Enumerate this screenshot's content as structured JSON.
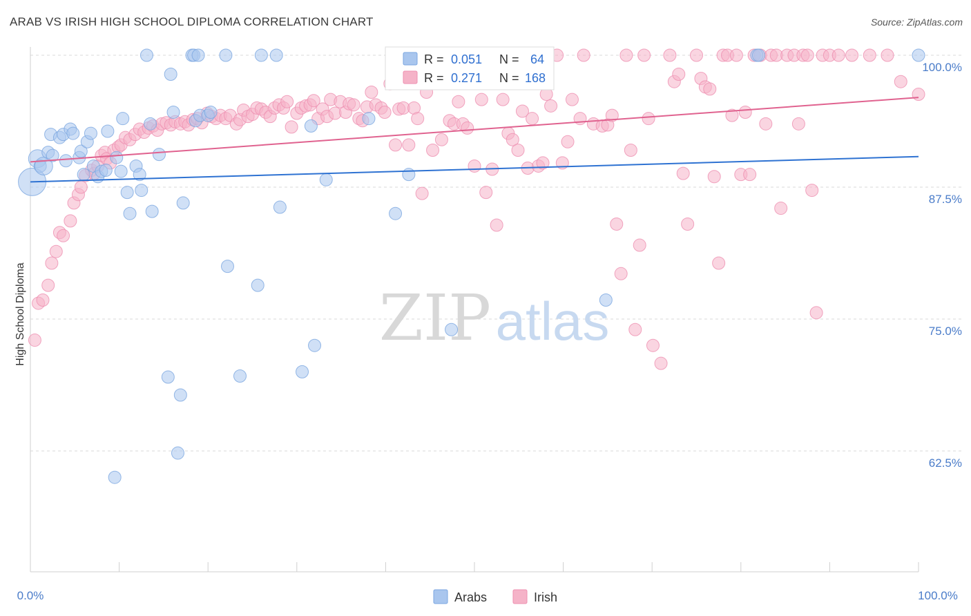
{
  "header": {
    "title": "ARAB VS IRISH HIGH SCHOOL DIPLOMA CORRELATION CHART",
    "source": "Source: ZipAtlas.com"
  },
  "watermark": {
    "zip": "ZIP",
    "atlas": "atlas"
  },
  "colors": {
    "arabs_fill": "#a9c6ee",
    "arabs_stroke": "#7aa6e0",
    "arabs_line": "#2e72d2",
    "irish_fill": "#f5b3c8",
    "irish_stroke": "#ee8fb0",
    "irish_line": "#e0628f",
    "grid": "#d9d9d9",
    "tick_label": "#4a7cc9"
  },
  "chart_data": {
    "type": "scatter",
    "title": "ARAB VS IRISH HIGH SCHOOL DIPLOMA CORRELATION CHART",
    "xlabel": "",
    "ylabel": "High School Diploma",
    "xlim": [
      0,
      100
    ],
    "ylim": [
      55.0,
      101.0
    ],
    "x_tick_labels": [
      "0.0%",
      "100.0%"
    ],
    "y_ticks": [
      {
        "value": 100.0,
        "label": "100.0%"
      },
      {
        "value": 87.5,
        "label": "87.5%"
      },
      {
        "value": 75.0,
        "label": "75.0%"
      },
      {
        "value": 62.5,
        "label": "62.5%"
      }
    ],
    "grid": "horizontal dashed",
    "legend_placement": "top-center",
    "legend": [
      {
        "name": "Arabs",
        "r_label": "R =",
        "r_value": "0.051",
        "n_label": "N =",
        "n_value": "64"
      },
      {
        "name": "Irish",
        "r_label": "R =",
        "r_value": "0.271",
        "n_label": "N =",
        "n_value": "168"
      }
    ],
    "series": [
      {
        "name": "Arabs",
        "trend": {
          "x": [
            0,
            100
          ],
          "y": [
            88.0,
            90.4
          ]
        },
        "points": [
          [
            0.2,
            88.0
          ],
          [
            0.8,
            90.2
          ],
          [
            1.1,
            89.5
          ],
          [
            1.5,
            89.5
          ],
          [
            2.0,
            90.8
          ],
          [
            2.3,
            92.5
          ],
          [
            2.5,
            90.5
          ],
          [
            3.3,
            92.2
          ],
          [
            3.7,
            92.5
          ],
          [
            4.0,
            90.0
          ],
          [
            4.5,
            93.0
          ],
          [
            4.8,
            92.6
          ],
          [
            5.5,
            90.3
          ],
          [
            5.7,
            90.9
          ],
          [
            6.0,
            88.7
          ],
          [
            6.4,
            91.8
          ],
          [
            6.8,
            92.6
          ],
          [
            7.1,
            89.5
          ],
          [
            7.6,
            88.5
          ],
          [
            8.0,
            89.0
          ],
          [
            8.5,
            89.1
          ],
          [
            8.7,
            92.8
          ],
          [
            9.5,
            60.0
          ],
          [
            9.7,
            90.3
          ],
          [
            10.2,
            89.0
          ],
          [
            10.4,
            94.0
          ],
          [
            10.9,
            87.0
          ],
          [
            11.2,
            85.0
          ],
          [
            11.9,
            89.5
          ],
          [
            12.3,
            88.7
          ],
          [
            12.5,
            87.2
          ],
          [
            13.1,
            100.0
          ],
          [
            13.5,
            93.5
          ],
          [
            13.7,
            85.2
          ],
          [
            14.5,
            90.6
          ],
          [
            15.5,
            69.5
          ],
          [
            15.8,
            98.2
          ],
          [
            16.1,
            94.6
          ],
          [
            16.6,
            62.3
          ],
          [
            16.9,
            67.8
          ],
          [
            17.2,
            86.0
          ],
          [
            18.2,
            100.0
          ],
          [
            18.4,
            100.0
          ],
          [
            18.6,
            93.8
          ],
          [
            18.9,
            100.0
          ],
          [
            19.1,
            94.3
          ],
          [
            20.0,
            94.3
          ],
          [
            20.3,
            94.6
          ],
          [
            22.0,
            100.0
          ],
          [
            22.2,
            80.0
          ],
          [
            23.6,
            69.6
          ],
          [
            25.6,
            78.2
          ],
          [
            26.0,
            100.0
          ],
          [
            27.7,
            100.0
          ],
          [
            28.1,
            85.6
          ],
          [
            30.6,
            70.0
          ],
          [
            31.6,
            93.3
          ],
          [
            32.0,
            72.5
          ],
          [
            33.3,
            88.2
          ],
          [
            38.1,
            94.0
          ],
          [
            41.1,
            85.0
          ],
          [
            42.6,
            88.7
          ],
          [
            47.4,
            74.0
          ],
          [
            49.5,
            100.0
          ],
          [
            57.2,
            100.0
          ],
          [
            64.8,
            76.8
          ],
          [
            81.8,
            100.0
          ],
          [
            82.0,
            100.0
          ],
          [
            100.0,
            100.0
          ]
        ]
      },
      {
        "name": "Irish",
        "trend": {
          "x": [
            0,
            100
          ],
          "y": [
            89.9,
            96.0
          ]
        },
        "points": [
          [
            0.5,
            73.0
          ],
          [
            0.9,
            76.5
          ],
          [
            1.4,
            76.8
          ],
          [
            2.0,
            78.2
          ],
          [
            2.4,
            80.3
          ],
          [
            2.9,
            81.4
          ],
          [
            3.3,
            83.2
          ],
          [
            3.7,
            82.9
          ],
          [
            4.5,
            84.3
          ],
          [
            4.9,
            86.0
          ],
          [
            5.4,
            86.8
          ],
          [
            5.7,
            87.5
          ],
          [
            6.2,
            88.6
          ],
          [
            6.9,
            89.1
          ],
          [
            7.2,
            88.8
          ],
          [
            7.6,
            89.5
          ],
          [
            8.0,
            90.5
          ],
          [
            8.4,
            90.8
          ],
          [
            8.6,
            90.2
          ],
          [
            9.0,
            89.8
          ],
          [
            9.4,
            91.0
          ],
          [
            9.9,
            91.3
          ],
          [
            10.2,
            91.5
          ],
          [
            10.7,
            92.2
          ],
          [
            11.2,
            92.0
          ],
          [
            11.8,
            92.5
          ],
          [
            12.3,
            93.0
          ],
          [
            12.8,
            92.7
          ],
          [
            13.3,
            93.1
          ],
          [
            13.8,
            93.3
          ],
          [
            14.3,
            92.9
          ],
          [
            14.8,
            93.5
          ],
          [
            15.3,
            93.6
          ],
          [
            15.8,
            93.4
          ],
          [
            16.3,
            93.7
          ],
          [
            16.9,
            93.5
          ],
          [
            17.4,
            93.7
          ],
          [
            17.8,
            93.4
          ],
          [
            18.3,
            93.9
          ],
          [
            18.8,
            94.0
          ],
          [
            19.3,
            93.6
          ],
          [
            19.9,
            94.5
          ],
          [
            20.4,
            94.2
          ],
          [
            20.9,
            94.0
          ],
          [
            21.4,
            94.3
          ],
          [
            22.0,
            94.0
          ],
          [
            22.5,
            94.3
          ],
          [
            23.2,
            93.5
          ],
          [
            23.6,
            93.9
          ],
          [
            24.0,
            94.8
          ],
          [
            24.5,
            94.2
          ],
          [
            25.0,
            94.4
          ],
          [
            25.5,
            95.0
          ],
          [
            26.0,
            94.9
          ],
          [
            26.5,
            94.6
          ],
          [
            27.0,
            94.2
          ],
          [
            27.5,
            95.0
          ],
          [
            28.0,
            95.3
          ],
          [
            28.5,
            95.0
          ],
          [
            28.9,
            95.6
          ],
          [
            29.4,
            93.2
          ],
          [
            30.0,
            94.5
          ],
          [
            30.5,
            95.0
          ],
          [
            31.0,
            95.2
          ],
          [
            31.5,
            95.3
          ],
          [
            31.9,
            95.7
          ],
          [
            32.4,
            94.0
          ],
          [
            32.9,
            94.9
          ],
          [
            33.4,
            94.2
          ],
          [
            33.8,
            95.8
          ],
          [
            34.3,
            94.5
          ],
          [
            34.9,
            95.6
          ],
          [
            35.5,
            94.6
          ],
          [
            35.9,
            95.4
          ],
          [
            36.4,
            95.3
          ],
          [
            37.0,
            94.0
          ],
          [
            37.4,
            93.8
          ],
          [
            37.9,
            95.1
          ],
          [
            38.4,
            96.5
          ],
          [
            38.9,
            95.3
          ],
          [
            39.5,
            95.0
          ],
          [
            39.9,
            94.6
          ],
          [
            40.5,
            97.3
          ],
          [
            41.1,
            91.5
          ],
          [
            41.5,
            94.9
          ],
          [
            42.0,
            95.0
          ],
          [
            42.6,
            91.5
          ],
          [
            43.2,
            95.0
          ],
          [
            43.6,
            94.0
          ],
          [
            44.1,
            86.9
          ],
          [
            44.6,
            96.5
          ],
          [
            45.3,
            91.0
          ],
          [
            45.8,
            100.0
          ],
          [
            46.3,
            92.0
          ],
          [
            47.2,
            93.8
          ],
          [
            47.7,
            93.5
          ],
          [
            48.2,
            95.6
          ],
          [
            48.7,
            93.5
          ],
          [
            49.2,
            93.1
          ],
          [
            50.0,
            89.5
          ],
          [
            50.8,
            95.8
          ],
          [
            51.3,
            87.0
          ],
          [
            52.0,
            89.2
          ],
          [
            52.5,
            83.9
          ],
          [
            53.2,
            95.8
          ],
          [
            53.8,
            92.6
          ],
          [
            54.3,
            92.0
          ],
          [
            54.9,
            91.0
          ],
          [
            55.4,
            94.7
          ],
          [
            56.0,
            89.3
          ],
          [
            56.5,
            94.0
          ],
          [
            57.2,
            89.5
          ],
          [
            57.7,
            89.8
          ],
          [
            58.1,
            96.3
          ],
          [
            58.6,
            95.2
          ],
          [
            59.3,
            100.0
          ],
          [
            59.9,
            89.8
          ],
          [
            60.5,
            91.8
          ],
          [
            61.0,
            95.8
          ],
          [
            61.9,
            94.0
          ],
          [
            62.3,
            100.0
          ],
          [
            63.4,
            93.5
          ],
          [
            64.4,
            93.3
          ],
          [
            65.0,
            93.4
          ],
          [
            65.5,
            94.3
          ],
          [
            66.0,
            84.0
          ],
          [
            66.5,
            79.3
          ],
          [
            67.1,
            100.0
          ],
          [
            67.6,
            91.0
          ],
          [
            68.1,
            74.0
          ],
          [
            68.6,
            82.0
          ],
          [
            69.1,
            100.0
          ],
          [
            69.6,
            94.0
          ],
          [
            70.1,
            72.5
          ],
          [
            71.0,
            70.8
          ],
          [
            72.0,
            100.0
          ],
          [
            72.5,
            97.5
          ],
          [
            73.0,
            98.2
          ],
          [
            73.5,
            88.8
          ],
          [
            74.0,
            84.0
          ],
          [
            75.0,
            100.0
          ],
          [
            75.5,
            97.8
          ],
          [
            76.0,
            97.0
          ],
          [
            76.5,
            96.8
          ],
          [
            77.0,
            88.5
          ],
          [
            77.5,
            80.3
          ],
          [
            78.0,
            100.0
          ],
          [
            78.5,
            100.0
          ],
          [
            79.0,
            94.3
          ],
          [
            79.5,
            100.0
          ],
          [
            80.0,
            88.7
          ],
          [
            80.5,
            94.6
          ],
          [
            81.0,
            88.7
          ],
          [
            81.5,
            100.0
          ],
          [
            82.2,
            100.0
          ],
          [
            82.8,
            93.5
          ],
          [
            83.4,
            100.0
          ],
          [
            84.0,
            100.0
          ],
          [
            84.5,
            85.5
          ],
          [
            85.2,
            100.0
          ],
          [
            86.0,
            100.0
          ],
          [
            86.5,
            93.5
          ],
          [
            87.0,
            100.0
          ],
          [
            87.5,
            100.0
          ],
          [
            88.0,
            87.2
          ],
          [
            88.5,
            75.6
          ],
          [
            89.2,
            100.0
          ],
          [
            90.0,
            100.0
          ],
          [
            91.0,
            100.0
          ],
          [
            92.5,
            100.0
          ],
          [
            94.5,
            100.0
          ],
          [
            96.5,
            100.0
          ],
          [
            98.0,
            97.5
          ],
          [
            100.0,
            96.3
          ]
        ]
      }
    ]
  },
  "bottom_legend": [
    "Arabs",
    "Irish"
  ]
}
